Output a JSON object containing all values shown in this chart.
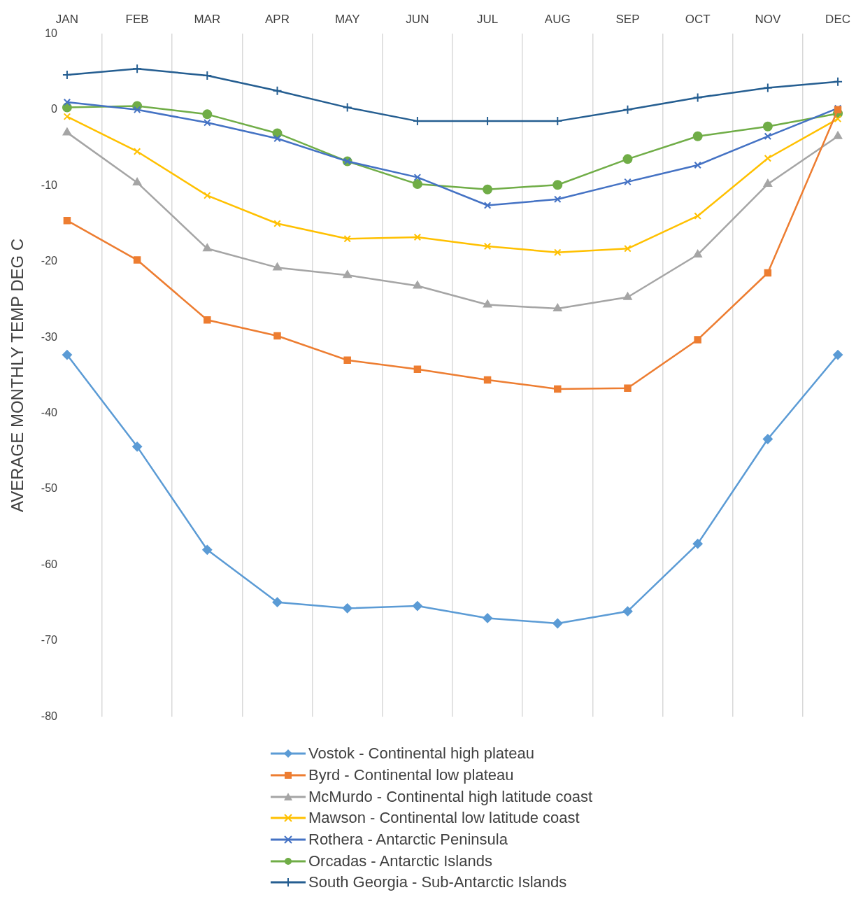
{
  "chart_data": {
    "type": "line",
    "ylabel": "AVERAGE MONTHLY TEMP DEG C",
    "categories": [
      "JAN",
      "FEB",
      "MAR",
      "APR",
      "MAY",
      "JUN",
      "JUL",
      "AUG",
      "SEP",
      "OCT",
      "NOV",
      "DEC"
    ],
    "ylim": [
      -80,
      10
    ],
    "yticks": [
      -80,
      -70,
      -60,
      -50,
      -40,
      -30,
      -20,
      -10,
      0,
      10
    ],
    "grid": "x",
    "legend": "bottom",
    "series": [
      {
        "name": "Vostok - Continental high plateau",
        "color": "#5b9bd5",
        "marker": "diamond",
        "values": [
          -32.3,
          -44.4,
          -58,
          -64.9,
          -65.7,
          -65.4,
          -67,
          -67.7,
          -66.1,
          -57.2,
          -43.4,
          -32.3
        ]
      },
      {
        "name": "Byrd - Continental low plateau",
        "color": "#ed7d31",
        "marker": "square",
        "values": [
          -14.6,
          -19.8,
          -27.7,
          -29.8,
          -33,
          -34.2,
          -35.6,
          -36.8,
          -36.7,
          -30.3,
          -21.5,
          0
        ]
      },
      {
        "name": "McMurdo - Continental high latitude coast",
        "color": "#a5a5a5",
        "marker": "triangle",
        "values": [
          -3,
          -9.6,
          -18.3,
          -20.8,
          -21.8,
          -23.2,
          -25.7,
          -26.2,
          -24.7,
          -19.1,
          -9.8,
          -3.5
        ]
      },
      {
        "name": "Mawson - Continental low latitude coast",
        "color": "#ffc000",
        "marker": "cross",
        "values": [
          -0.9,
          -5.5,
          -11.3,
          -15,
          -17,
          -16.8,
          -18,
          -18.8,
          -18.3,
          -14,
          -6.4,
          -1.2
        ]
      },
      {
        "name": "Rothera - Antarctic Peninsula",
        "color": "#4472c4",
        "marker": "cross",
        "values": [
          1,
          0,
          -1.7,
          -3.8,
          -6.8,
          -8.9,
          -12.6,
          -11.8,
          -9.5,
          -7.3,
          -3.5,
          0.2
        ]
      },
      {
        "name": "Orcadas - Antarctic Islands",
        "color": "#70ad47",
        "marker": "circle",
        "values": [
          0.3,
          0.5,
          -0.6,
          -3.1,
          -6.8,
          -9.8,
          -10.5,
          -9.9,
          -6.5,
          -3.5,
          -2.2,
          -0.5
        ]
      },
      {
        "name": "South Georgia - Sub-Antarctic Islands",
        "color": "#255e91",
        "marker": "plus",
        "values": [
          4.6,
          5.4,
          4.5,
          2.5,
          0.3,
          -1.5,
          -1.5,
          -1.5,
          0,
          1.6,
          2.9,
          3.7
        ]
      }
    ]
  }
}
